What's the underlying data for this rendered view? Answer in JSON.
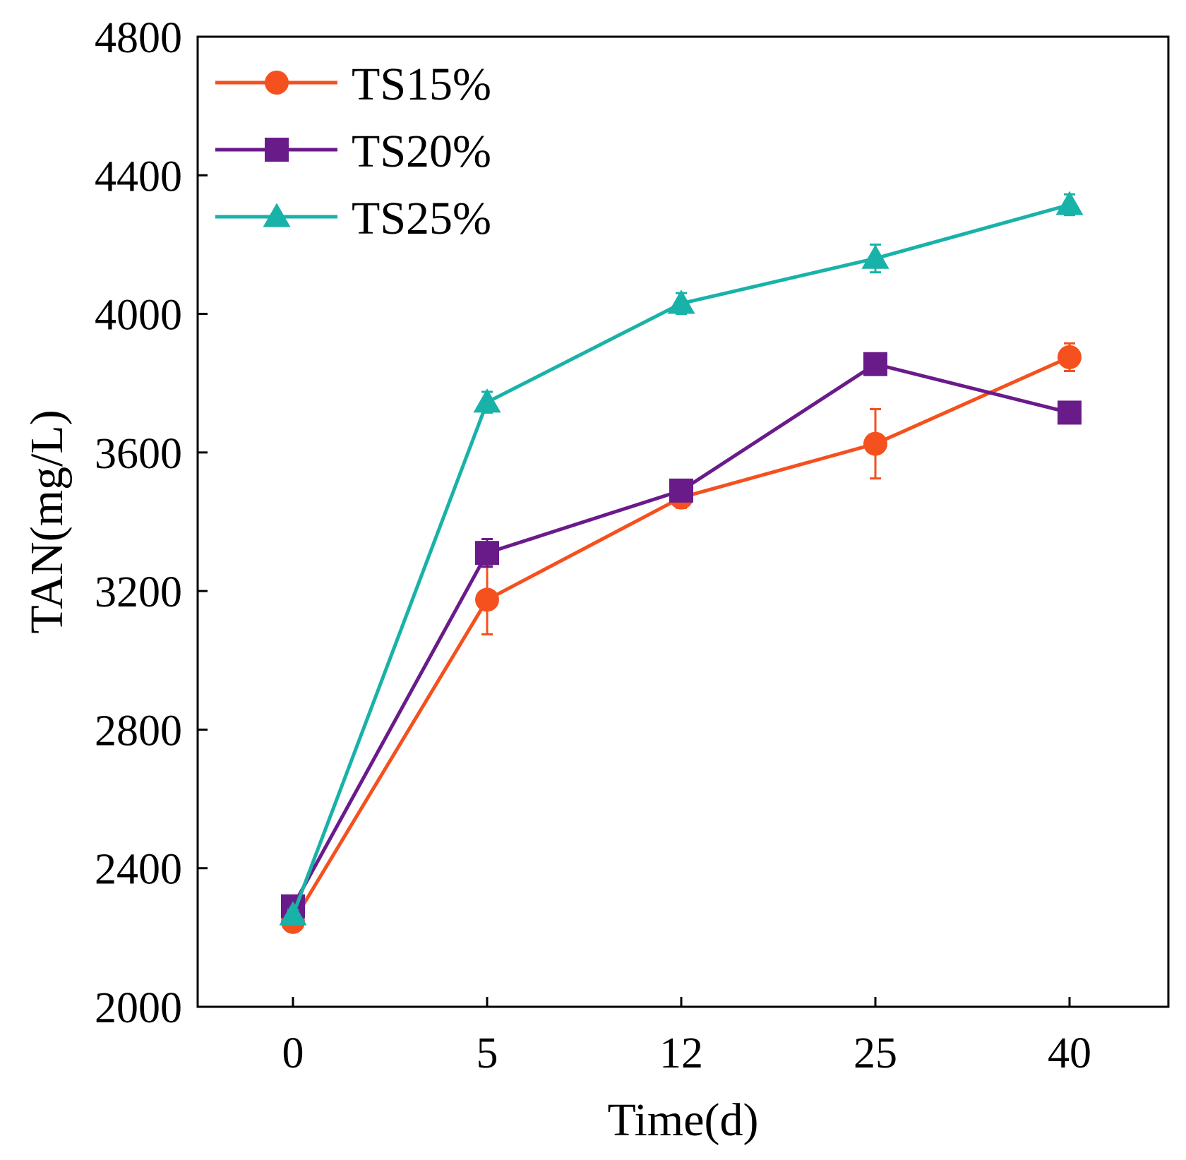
{
  "chart_data": {
    "type": "line",
    "title": "",
    "xlabel": "Time(d)",
    "ylabel": "TAN(mg/L)",
    "categories": [
      "0",
      "5",
      "12",
      "25",
      "40"
    ],
    "ylim": [
      2000,
      4800
    ],
    "yticks": [
      2000,
      2400,
      2800,
      3200,
      3600,
      4000,
      4400,
      4800
    ],
    "ytick_labels": [
      "2000",
      "2400",
      "2800",
      "3200",
      "3600",
      "4000",
      "4400",
      "4800"
    ],
    "grid": false,
    "legend_position": "top-left",
    "series": [
      {
        "name": "TS15%",
        "color": "#f4511e",
        "marker": "circle",
        "values": [
          2245,
          3175,
          3470,
          3625,
          3875
        ],
        "errors": [
          15,
          100,
          30,
          100,
          40
        ]
      },
      {
        "name": "TS20%",
        "color": "#6a1b8a",
        "marker": "square",
        "values": [
          2290,
          3310,
          3490,
          3855,
          3715
        ],
        "errors": [
          15,
          40,
          20,
          20,
          30
        ]
      },
      {
        "name": "TS25%",
        "color": "#19b2a8",
        "marker": "triangle",
        "values": [
          2265,
          3745,
          4030,
          4160,
          4315
        ],
        "errors": [
          15,
          30,
          30,
          40,
          30
        ]
      }
    ]
  }
}
